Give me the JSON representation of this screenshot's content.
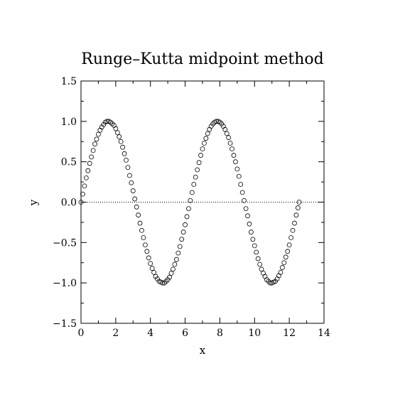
{
  "chart_data": {
    "type": "scatter",
    "title": "Runge–Kutta midpoint method",
    "xlabel": "x",
    "ylabel": "y",
    "xlim": [
      0,
      14
    ],
    "ylim": [
      -1.5,
      1.5
    ],
    "x_ticks": [
      0,
      2,
      4,
      6,
      8,
      10,
      12,
      14
    ],
    "y_ticks": [
      -1.5,
      -1.0,
      -0.5,
      0.0,
      0.5,
      1.0,
      1.5
    ],
    "x_tick_labels": [
      "0",
      "2",
      "4",
      "6",
      "8",
      "10",
      "12",
      "14"
    ],
    "y_tick_labels": [
      "−1.5",
      "−1.0",
      "−0.5",
      "0.0",
      "0.5",
      "1.0",
      "1.5"
    ],
    "grid": false,
    "reference_line": {
      "y": 0.0,
      "style": "dotted"
    },
    "marker": "open-circle",
    "series": [
      {
        "x": [
          0.0,
          0.1,
          0.2,
          0.3,
          0.4,
          0.5,
          0.6,
          0.7,
          0.8,
          0.9,
          1.0,
          1.1,
          1.2,
          1.3,
          1.4,
          1.5,
          1.6,
          1.7,
          1.8,
          1.9,
          2.0,
          2.1,
          2.2,
          2.3,
          2.4,
          2.5,
          2.6,
          2.7,
          2.8,
          2.9,
          3.0,
          3.1,
          3.2,
          3.3,
          3.4,
          3.5,
          3.6,
          3.7,
          3.8,
          3.9,
          4.0,
          4.1,
          4.2,
          4.3,
          4.4,
          4.5,
          4.6,
          4.7,
          4.8,
          4.9,
          5.0,
          5.1,
          5.2,
          5.3,
          5.4,
          5.5,
          5.6,
          5.7,
          5.8,
          5.9,
          6.0,
          6.1,
          6.2,
          6.3,
          6.4,
          6.5,
          6.6,
          6.7,
          6.8,
          6.9,
          7.0,
          7.1,
          7.2,
          7.3,
          7.4,
          7.5,
          7.6,
          7.7,
          7.8,
          7.9,
          8.0,
          8.1,
          8.2,
          8.3,
          8.4,
          8.5,
          8.6,
          8.7,
          8.8,
          8.9,
          9.0,
          9.1,
          9.2,
          9.3,
          9.4,
          9.5,
          9.6,
          9.7,
          9.8,
          9.9,
          10.0,
          10.1,
          10.2,
          10.3,
          10.4,
          10.5,
          10.6,
          10.7,
          10.8,
          10.9,
          11.0,
          11.1,
          11.2,
          11.3,
          11.4,
          11.5,
          11.6,
          11.7,
          11.8,
          11.9,
          12.0,
          12.1,
          12.2,
          12.3,
          12.4,
          12.5,
          12.57
        ],
        "y": [
          0.0,
          0.1,
          0.2,
          0.3,
          0.39,
          0.48,
          0.56,
          0.64,
          0.72,
          0.78,
          0.84,
          0.89,
          0.93,
          0.96,
          0.99,
          1.0,
          1.0,
          0.99,
          0.97,
          0.95,
          0.91,
          0.86,
          0.81,
          0.75,
          0.68,
          0.6,
          0.52,
          0.43,
          0.33,
          0.24,
          0.14,
          0.04,
          -0.06,
          -0.16,
          -0.26,
          -0.35,
          -0.44,
          -0.53,
          -0.61,
          -0.69,
          -0.76,
          -0.82,
          -0.87,
          -0.92,
          -0.95,
          -0.98,
          -0.99,
          -1.0,
          -1.0,
          -0.98,
          -0.96,
          -0.93,
          -0.88,
          -0.83,
          -0.77,
          -0.71,
          -0.63,
          -0.55,
          -0.46,
          -0.37,
          -0.28,
          -0.18,
          -0.08,
          0.02,
          0.12,
          0.22,
          0.31,
          0.4,
          0.49,
          0.58,
          0.66,
          0.73,
          0.79,
          0.85,
          0.9,
          0.94,
          0.97,
          0.99,
          1.0,
          1.0,
          0.99,
          0.97,
          0.94,
          0.9,
          0.85,
          0.8,
          0.73,
          0.66,
          0.58,
          0.5,
          0.41,
          0.32,
          0.22,
          0.12,
          0.02,
          -0.08,
          -0.17,
          -0.27,
          -0.37,
          -0.46,
          -0.54,
          -0.62,
          -0.7,
          -0.77,
          -0.83,
          -0.88,
          -0.92,
          -0.96,
          -0.98,
          -1.0,
          -1.0,
          -0.99,
          -0.98,
          -0.95,
          -0.91,
          -0.87,
          -0.81,
          -0.75,
          -0.68,
          -0.61,
          -0.53,
          -0.44,
          -0.35,
          -0.26,
          -0.16,
          -0.07,
          0.0
        ]
      }
    ]
  }
}
